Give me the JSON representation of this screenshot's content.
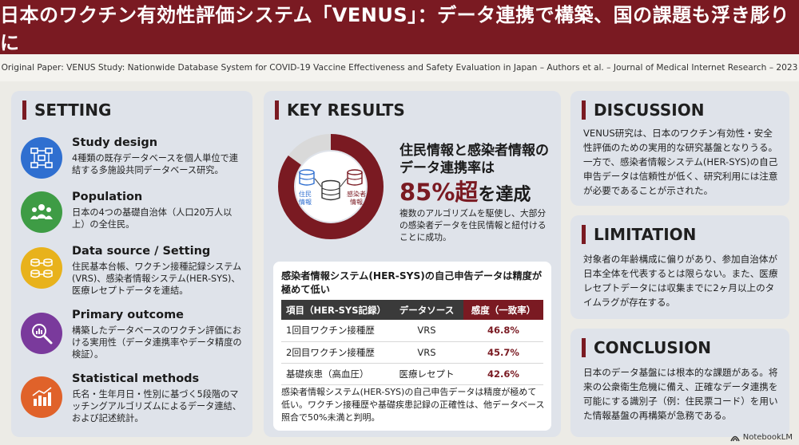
{
  "header": {
    "title": "日本のワクチン有効性評価システム「VENUS」：データ連携で構築、国の課題も浮き彫りに",
    "citation": "Original Paper: VENUS Study: Nationwide Database System for COVID-19 Vaccine Effectiveness and Safety Evaluation in Japan – Authors et al. – Journal of Medical Internet Research – 2023"
  },
  "setting": {
    "title": "SETTING",
    "items": [
      {
        "icon": "flowchart-icon",
        "title": "Study design",
        "body": "4種類の既存データベースを個人単位で連結する多施設共同データベース研究。",
        "color": "#2f6fd0"
      },
      {
        "icon": "people-icon",
        "title": "Population",
        "body": "日本の4つの基礎自治体（人口20万人以上）の全住民。",
        "color": "#3e9c45"
      },
      {
        "icon": "database-link-icon",
        "title": "Data source / Setting",
        "body": "住民基本台帳、ワクチン接種記録システム(VRS)、感染者情報システム(HER-SYS)、医療レセプトデータを連結。",
        "color": "#e8b21c"
      },
      {
        "icon": "magnifier-data-icon",
        "title": "Primary outcome",
        "body": "構築したデータベースのワクチン評価における実用性（データ連携率やデータ精度の検証）。",
        "color": "#7a3a9c"
      },
      {
        "icon": "bar-chart-icon",
        "title": "Statistical methods",
        "body": "氏名・生年月日・性別に基づく5段階のマッチングアルゴリズムによるデータ連結、および記述統計。",
        "color": "#e0622a"
      }
    ]
  },
  "key_results": {
    "title": "KEY RESULTS",
    "donut": {
      "percent": 85,
      "left_label": "住民\n情報",
      "right_label": "感染者\n情報",
      "main_color": "#7a1a22",
      "rest_color": "#d9d9d9"
    },
    "headline_line1": "住民情報と感染者情報の",
    "headline_line2": "データ連携率は",
    "headline_big": "85%超",
    "headline_tail": "を達成",
    "description": "複数のアルゴリズムを駆使し、大部分の感染者データを住民情報と紐付けることに成功。",
    "table_title": "感染者情報システム(HER-SYS)の自己申告データは精度が極めて低い",
    "table": {
      "headers": [
        "項目（HER-SYS記録）",
        "データソース",
        "感度（一致率）"
      ],
      "rows": [
        [
          "1回目ワクチン接種歴",
          "VRS",
          "46.8%"
        ],
        [
          "2回目ワクチン接種歴",
          "VRS",
          "45.7%"
        ],
        [
          "基礎疾患（高血圧）",
          "医療レセプト",
          "42.6%"
        ]
      ]
    },
    "footnote": "感染者情報システム(HER-SYS)の自己申告データは精度が極めて低い。ワクチン接種歴や基礎疾患記録の正確性は、他データベース照合で50%未満と判明。"
  },
  "discussion": {
    "title": "DISCUSSION",
    "body": "VENUS研究は、日本のワクチン有効性・安全性評価のための実用的な研究基盤となりうる。一方で、感染者情報システム(HER-SYS)の自己申告データは信頼性が低く、研究利用には注意が必要であることが示された。"
  },
  "limitation": {
    "title": "LIMITATION",
    "body": "対象者の年齢構成に偏りがあり、参加自治体が日本全体を代表するとは限らない。また、医療レセプトデータには収集までに2ヶ月以上のタイムラグが存在する。"
  },
  "conclusion": {
    "title": "CONCLUSION",
    "body": "日本のデータ基盤には根本的な課題がある。将来の公衆衛生危機に備え、正確なデータ連携を可能にする識別子（例：住民票コード）を用いた情報基盤の再構築が急務である。"
  },
  "watermark": "NotebookLM",
  "colors": {
    "accent": "#7a1a22",
    "card": "#dfe3ea",
    "background": "#ecebe6"
  }
}
